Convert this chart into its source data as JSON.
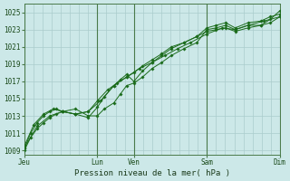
{
  "title": "",
  "xlabel": "Pression niveau de la mer( hPa )",
  "ylabel": "",
  "bg_color": "#cce8e8",
  "grid_color": "#aacccc",
  "line_color": "#1a6b1a",
  "marker_color": "#1a6b1a",
  "ylim": [
    1008.5,
    1026.0
  ],
  "yticks": [
    1009,
    1011,
    1013,
    1015,
    1017,
    1019,
    1021,
    1023,
    1025
  ],
  "day_labels": [
    "Jeu",
    "",
    "Lun",
    "Ven",
    "",
    "Sam",
    "",
    "Dim"
  ],
  "day_positions": [
    0.0,
    1.143,
    2.286,
    3.429,
    4.571,
    5.714,
    6.857,
    8.0
  ],
  "vline_positions": [
    0.0,
    2.286,
    3.429,
    5.714,
    8.0
  ],
  "series1_x": [
    0.0,
    0.2,
    0.4,
    0.6,
    0.8,
    1.0,
    1.2,
    1.6,
    2.0,
    2.286,
    2.5,
    2.8,
    3.0,
    3.2,
    3.429,
    3.7,
    4.0,
    4.3,
    4.6,
    5.0,
    5.4,
    5.714,
    6.0,
    6.3,
    6.6,
    7.0,
    7.4,
    7.7,
    8.0
  ],
  "series1_y": [
    1009.0,
    1010.5,
    1011.5,
    1012.2,
    1012.8,
    1013.2,
    1013.5,
    1013.8,
    1013.0,
    1013.0,
    1013.8,
    1014.5,
    1015.5,
    1016.5,
    1016.8,
    1017.5,
    1018.5,
    1019.2,
    1020.0,
    1020.8,
    1021.5,
    1023.0,
    1023.2,
    1023.5,
    1023.0,
    1023.5,
    1023.5,
    1024.2,
    1025.2
  ],
  "series2_x": [
    0.0,
    0.2,
    0.4,
    0.6,
    0.8,
    1.0,
    1.2,
    1.6,
    2.0,
    2.286,
    2.5,
    2.8,
    3.0,
    3.2,
    3.429,
    3.7,
    4.0,
    4.3,
    4.6,
    5.0,
    5.4,
    5.714,
    6.0,
    6.3,
    6.6,
    7.0,
    7.4,
    7.7,
    8.0
  ],
  "series2_y": [
    1009.2,
    1011.0,
    1012.2,
    1013.0,
    1013.5,
    1013.8,
    1013.5,
    1013.2,
    1012.8,
    1014.0,
    1015.2,
    1016.5,
    1017.2,
    1017.8,
    1017.0,
    1018.2,
    1019.2,
    1020.0,
    1020.8,
    1021.5,
    1022.2,
    1023.2,
    1023.5,
    1023.8,
    1023.2,
    1023.8,
    1024.0,
    1024.5,
    1024.8
  ],
  "series3_x": [
    0.0,
    0.3,
    0.6,
    0.9,
    1.2,
    1.6,
    2.0,
    2.3,
    2.6,
    2.9,
    3.2,
    3.429,
    3.7,
    4.0,
    4.3,
    4.6,
    5.0,
    5.4,
    5.714,
    6.0,
    6.3,
    6.6,
    7.0,
    7.4,
    7.7,
    8.0
  ],
  "series3_y": [
    1009.5,
    1012.0,
    1013.2,
    1013.8,
    1013.5,
    1013.2,
    1013.5,
    1014.8,
    1016.0,
    1016.8,
    1017.5,
    1018.0,
    1018.8,
    1019.5,
    1020.2,
    1021.0,
    1021.5,
    1022.2,
    1022.8,
    1023.0,
    1023.2,
    1022.8,
    1023.2,
    1023.5,
    1023.8,
    1024.5
  ],
  "series4_x": [
    0.0,
    0.4,
    0.8,
    1.2,
    1.6,
    2.0,
    2.4,
    2.8,
    3.2,
    3.6,
    4.0,
    4.4,
    4.8,
    5.2,
    5.714,
    6.2,
    6.6,
    7.0,
    7.5,
    8.0
  ],
  "series4_y": [
    1009.3,
    1011.8,
    1013.0,
    1013.5,
    1013.2,
    1013.5,
    1014.8,
    1016.5,
    1017.5,
    1018.5,
    1019.2,
    1020.0,
    1020.8,
    1021.5,
    1022.5,
    1023.2,
    1023.0,
    1023.5,
    1024.0,
    1024.5
  ],
  "tick_fontsize": 5.5,
  "label_fontsize": 6.5
}
